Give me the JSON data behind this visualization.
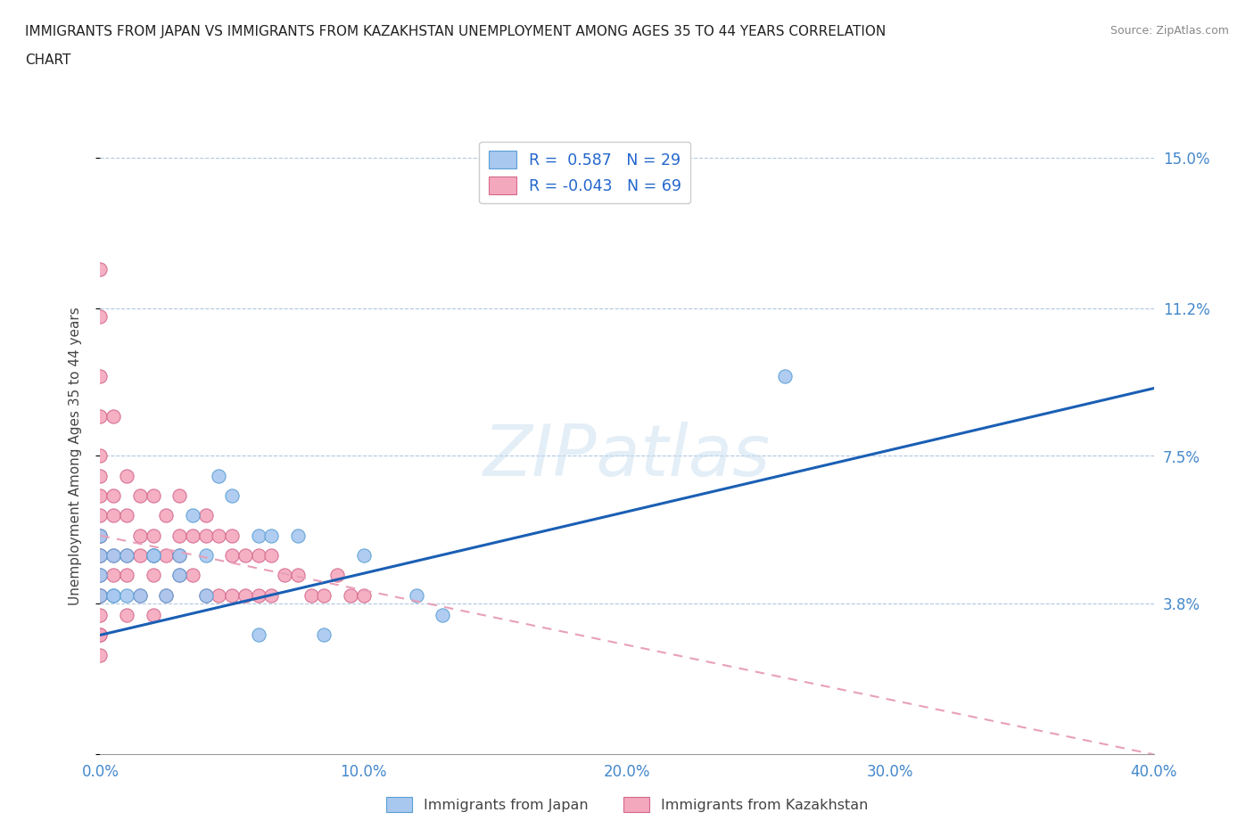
{
  "title": "IMMIGRANTS FROM JAPAN VS IMMIGRANTS FROM KAZAKHSTAN UNEMPLOYMENT AMONG AGES 35 TO 44 YEARS CORRELATION\nCHART",
  "source": "Source: ZipAtlas.com",
  "ylabel": "Unemployment Among Ages 35 to 44 years",
  "xlim": [
    0.0,
    0.4
  ],
  "ylim": [
    0.0,
    0.15
  ],
  "yticks": [
    0.0,
    0.038,
    0.075,
    0.112,
    0.15
  ],
  "ytick_labels": [
    "",
    "3.8%",
    "7.5%",
    "11.2%",
    "15.0%"
  ],
  "xticks": [
    0.0,
    0.1,
    0.2,
    0.3,
    0.4
  ],
  "xtick_labels": [
    "0.0%",
    "10.0%",
    "20.0%",
    "30.0%",
    "40.0%"
  ],
  "japan_color": "#a8c8f0",
  "japan_edge": "#5a9fd4",
  "kazakhstan_color": "#f4a8be",
  "kazakhstan_edge": "#d4688c",
  "trend_japan_color": "#1a5fb4",
  "trend_kazakhstan_color": "#e8a0b8",
  "R_japan": 0.587,
  "N_japan": 29,
  "R_kazakhstan": -0.043,
  "N_kazakhstan": 69,
  "japan_trend_x0": 0.0,
  "japan_trend_y0": 0.03,
  "japan_trend_x1": 0.4,
  "japan_trend_y1": 0.092,
  "kaz_trend_x0": 0.0,
  "kaz_trend_y0": 0.055,
  "kaz_trend_x1": 0.4,
  "kaz_trend_y1": 0.0,
  "japan_points_x": [
    0.0,
    0.0,
    0.0,
    0.0,
    0.005,
    0.005,
    0.005,
    0.01,
    0.01,
    0.015,
    0.02,
    0.02,
    0.025,
    0.03,
    0.03,
    0.035,
    0.04,
    0.04,
    0.045,
    0.05,
    0.06,
    0.06,
    0.065,
    0.075,
    0.085,
    0.1,
    0.12,
    0.13,
    0.26
  ],
  "japan_points_y": [
    0.05,
    0.04,
    0.045,
    0.055,
    0.05,
    0.04,
    0.04,
    0.05,
    0.04,
    0.04,
    0.05,
    0.05,
    0.04,
    0.05,
    0.045,
    0.06,
    0.05,
    0.04,
    0.07,
    0.065,
    0.055,
    0.03,
    0.055,
    0.055,
    0.03,
    0.05,
    0.04,
    0.035,
    0.095
  ],
  "kazakhstan_points_x": [
    0.0,
    0.0,
    0.0,
    0.0,
    0.0,
    0.0,
    0.0,
    0.0,
    0.0,
    0.0,
    0.0,
    0.0,
    0.0,
    0.0,
    0.0,
    0.0,
    0.0,
    0.0,
    0.0,
    0.0,
    0.005,
    0.005,
    0.005,
    0.005,
    0.005,
    0.01,
    0.01,
    0.01,
    0.01,
    0.01,
    0.015,
    0.015,
    0.015,
    0.015,
    0.02,
    0.02,
    0.02,
    0.02,
    0.02,
    0.025,
    0.025,
    0.025,
    0.03,
    0.03,
    0.03,
    0.03,
    0.035,
    0.035,
    0.04,
    0.04,
    0.04,
    0.045,
    0.045,
    0.05,
    0.05,
    0.05,
    0.055,
    0.055,
    0.06,
    0.06,
    0.065,
    0.065,
    0.07,
    0.075,
    0.08,
    0.085,
    0.09,
    0.095,
    0.1
  ],
  "kazakhstan_points_y": [
    0.122,
    0.11,
    0.095,
    0.085,
    0.075,
    0.07,
    0.065,
    0.06,
    0.055,
    0.055,
    0.05,
    0.05,
    0.045,
    0.04,
    0.04,
    0.04,
    0.035,
    0.03,
    0.03,
    0.025,
    0.085,
    0.065,
    0.06,
    0.05,
    0.045,
    0.07,
    0.06,
    0.05,
    0.045,
    0.035,
    0.065,
    0.055,
    0.05,
    0.04,
    0.065,
    0.055,
    0.05,
    0.045,
    0.035,
    0.06,
    0.05,
    0.04,
    0.065,
    0.055,
    0.05,
    0.045,
    0.055,
    0.045,
    0.06,
    0.055,
    0.04,
    0.055,
    0.04,
    0.055,
    0.05,
    0.04,
    0.05,
    0.04,
    0.05,
    0.04,
    0.05,
    0.04,
    0.045,
    0.045,
    0.04,
    0.04,
    0.045,
    0.04,
    0.04
  ]
}
